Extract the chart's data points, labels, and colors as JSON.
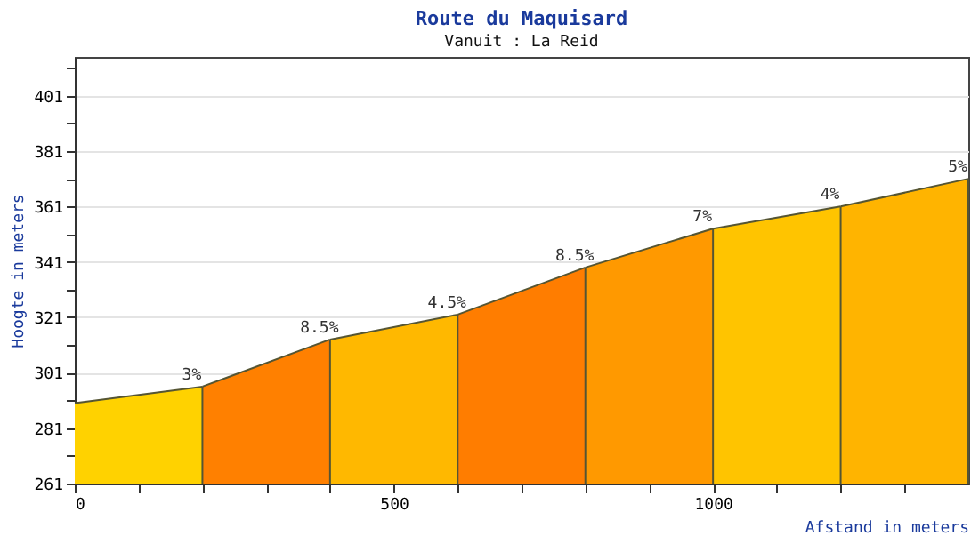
{
  "chart_data": {
    "type": "area",
    "title": "Route du Maquisard",
    "subtitle": "Vanuit : La Reid",
    "xlabel": "Afstand in meters",
    "ylabel": "Hoogte in meters",
    "series": [
      {
        "color": "#ffd200",
        "x": [
          0,
          200
        ],
        "values": [
          290,
          296
        ]
      },
      {
        "color": "#ff8000",
        "x": [
          200,
          400
        ],
        "values": [
          296,
          313
        ]
      },
      {
        "color": "#ffb800",
        "x": [
          400,
          600
        ],
        "values": [
          313,
          322
        ]
      },
      {
        "color": "#ff7d00",
        "x": [
          600,
          800
        ],
        "values": [
          322,
          339
        ]
      },
      {
        "color": "#ff9900",
        "x": [
          800,
          1000
        ],
        "values": [
          339,
          353
        ]
      },
      {
        "color": "#ffc400",
        "x": [
          1000,
          1200
        ],
        "values": [
          353,
          361
        ]
      },
      {
        "color": "#ffb400",
        "x": [
          1200,
          1400
        ],
        "values": [
          361,
          371
        ]
      }
    ],
    "annotations": [
      {
        "text": "3%",
        "x": 200,
        "y": 296
      },
      {
        "text": "8.5%",
        "x": 400,
        "y": 313
      },
      {
        "text": "4.5%",
        "x": 600,
        "y": 322
      },
      {
        "text": "8.5%",
        "x": 800,
        "y": 339
      },
      {
        "text": "7%",
        "x": 1000,
        "y": 353
      },
      {
        "text": "4%",
        "x": 1200,
        "y": 361
      },
      {
        "text": "5%",
        "x": 1400,
        "y": 371
      }
    ],
    "xlim": [
      0,
      1400
    ],
    "xticks": [
      0,
      {
        "value": 100,
        "label": null
      },
      {
        "value": 200,
        "label": null
      },
      {
        "value": 300,
        "label": null
      },
      {
        "value": 400,
        "label": null
      },
      500,
      {
        "value": 600,
        "label": null
      },
      {
        "value": 700,
        "label": null
      },
      {
        "value": 800,
        "label": null
      },
      {
        "value": 900,
        "label": null
      },
      1000,
      {
        "value": 1100,
        "label": null
      },
      {
        "value": 1200,
        "label": null
      },
      {
        "value": 1300,
        "label": null
      }
    ],
    "ylim": [
      261,
      415
    ],
    "yticks": [
      261,
      {
        "value": 271,
        "label": null
      },
      281,
      {
        "value": 291,
        "label": null
      },
      301,
      {
        "value": 311,
        "label": null
      },
      321,
      {
        "value": 331,
        "label": null
      },
      341,
      {
        "value": 351,
        "label": null
      },
      361,
      {
        "value": 371,
        "label": null
      },
      381,
      {
        "value": 391,
        "label": null
      },
      401,
      {
        "value": 411,
        "label": null
      }
    ],
    "grid": "y"
  }
}
